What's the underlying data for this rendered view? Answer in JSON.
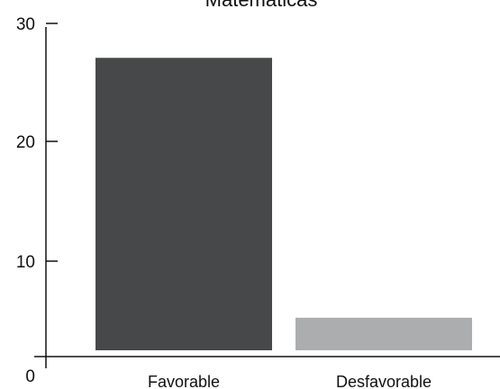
{
  "chart_data": {
    "type": "bar",
    "title": "Matemáticas",
    "categories": [
      "Favorable",
      "Desfavorable"
    ],
    "values": [
      27.2,
      5.5
    ],
    "ylim": [
      0,
      30
    ],
    "yticks": [
      0,
      10,
      20,
      30
    ],
    "xlabel": "",
    "ylabel": "",
    "grid": false,
    "legend": "none",
    "colors": [
      "#474849",
      "#acadaf"
    ]
  }
}
